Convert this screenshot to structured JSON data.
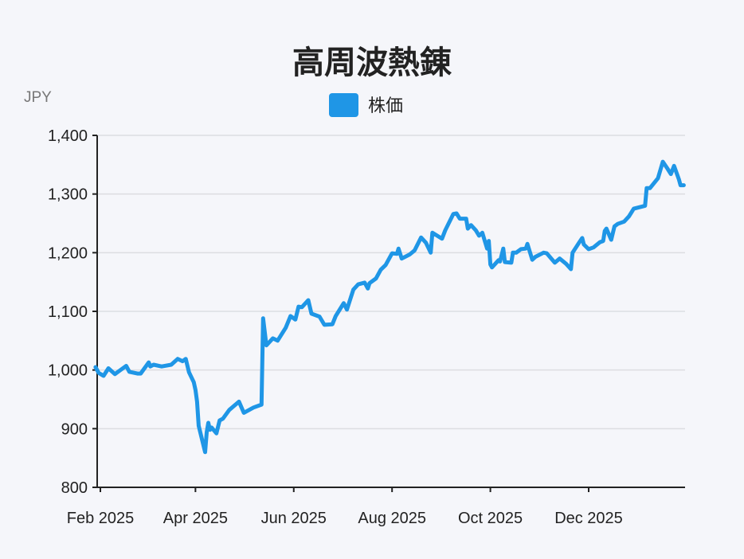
{
  "chart_data": {
    "type": "line",
    "title": "高周波熱錬",
    "ylabel": "JPY",
    "xlabel": "",
    "ylim": [
      800,
      1400
    ],
    "yticks": [
      800,
      900,
      1000,
      1100,
      1200,
      1300,
      1400
    ],
    "ytick_labels": [
      "800",
      "900",
      "1,000",
      "1,100",
      "1,200",
      "1,300",
      "1,400"
    ],
    "xticks": [
      "2025-02-01",
      "2025-04-01",
      "2025-06-01",
      "2025-08-01",
      "2025-10-01",
      "2025-12-01"
    ],
    "xtick_labels": [
      "Feb 2025",
      "Apr 2025",
      "Jun 2025",
      "Aug 2025",
      "Oct 2025",
      "Dec 2025"
    ],
    "grid": true,
    "legend": {
      "position": "top",
      "entries": [
        "株価"
      ]
    },
    "colors": {
      "line": "#1f96e6",
      "grid": "#dcdde1",
      "background": "#f5f6fa"
    },
    "series": [
      {
        "name": "株価",
        "x": [
          "2025-01-29",
          "2025-01-31",
          "2025-02-03",
          "2025-02-06",
          "2025-02-10",
          "2025-02-13",
          "2025-02-17",
          "2025-02-19",
          "2025-02-24",
          "2025-02-26",
          "2025-03-03",
          "2025-03-04",
          "2025-03-06",
          "2025-03-11",
          "2025-03-17",
          "2025-03-21",
          "2025-03-24",
          "2025-03-26",
          "2025-03-28",
          "2025-03-31",
          "2025-04-01",
          "2025-04-02",
          "2025-04-03",
          "2025-04-07",
          "2025-04-08",
          "2025-04-09",
          "2025-04-10",
          "2025-04-11",
          "2025-04-14",
          "2025-04-16",
          "2025-04-18",
          "2025-04-22",
          "2025-04-28",
          "2025-05-01",
          "2025-05-07",
          "2025-05-12",
          "2025-05-13",
          "2025-05-15",
          "2025-05-19",
          "2025-05-22",
          "2025-05-27",
          "2025-05-30",
          "2025-06-02",
          "2025-06-04",
          "2025-06-06",
          "2025-06-10",
          "2025-06-12",
          "2025-06-17",
          "2025-06-20",
          "2025-06-25",
          "2025-06-27",
          "2025-07-02",
          "2025-07-04",
          "2025-07-08",
          "2025-07-11",
          "2025-07-15",
          "2025-07-17",
          "2025-07-18",
          "2025-07-22",
          "2025-07-25",
          "2025-07-28",
          "2025-08-01",
          "2025-08-04",
          "2025-08-05",
          "2025-08-07",
          "2025-08-12",
          "2025-08-15",
          "2025-08-19",
          "2025-08-22",
          "2025-08-25",
          "2025-08-26",
          "2025-09-01",
          "2025-09-03",
          "2025-09-08",
          "2025-09-10",
          "2025-09-12",
          "2025-09-16",
          "2025-09-17",
          "2025-09-19",
          "2025-09-22",
          "2025-09-24",
          "2025-09-26",
          "2025-09-29",
          "2025-09-30",
          "2025-10-01",
          "2025-10-02",
          "2025-10-06",
          "2025-10-07",
          "2025-10-09",
          "2025-10-10",
          "2025-10-14",
          "2025-10-15",
          "2025-10-17",
          "2025-10-20",
          "2025-10-23",
          "2025-10-24",
          "2025-10-27",
          "2025-10-29",
          "2025-11-03",
          "2025-11-05",
          "2025-11-10",
          "2025-11-13",
          "2025-11-17",
          "2025-11-20",
          "2025-11-21",
          "2025-11-25",
          "2025-11-27",
          "2025-11-28",
          "2025-12-01",
          "2025-12-04",
          "2025-12-08",
          "2025-12-10",
          "2025-12-11",
          "2025-12-12",
          "2025-12-15",
          "2025-12-17",
          "2025-12-19",
          "2025-12-23",
          "2025-12-26",
          "2025-12-29",
          "2026-01-05",
          "2026-01-06",
          "2026-01-08",
          "2026-01-13",
          "2026-01-16",
          "2026-01-19",
          "2026-01-21",
          "2026-01-23",
          "2026-01-26",
          "2026-01-27",
          "2026-01-29"
        ],
        "y": [
          1005,
          995,
          990,
          1003,
          993,
          999,
          1007,
          997,
          994,
          994,
          1013,
          1006,
          1009,
          1006,
          1009,
          1019,
          1015,
          1019,
          996,
          979,
          966,
          946,
          905,
          860,
          894,
          910,
          898,
          902,
          892,
          914,
          917,
          932,
          946,
          927,
          936,
          941,
          1088,
          1042,
          1054,
          1050,
          1072,
          1092,
          1086,
          1108,
          1107,
          1119,
          1096,
          1091,
          1077,
          1078,
          1092,
          1114,
          1103,
          1137,
          1146,
          1149,
          1139,
          1148,
          1156,
          1171,
          1179,
          1199,
          1198,
          1207,
          1190,
          1197,
          1204,
          1226,
          1217,
          1200,
          1234,
          1224,
          1238,
          1266,
          1267,
          1258,
          1258,
          1241,
          1247,
          1238,
          1229,
          1234,
          1207,
          1220,
          1180,
          1175,
          1187,
          1185,
          1207,
          1184,
          1183,
          1200,
          1200,
          1206,
          1207,
          1215,
          1188,
          1193,
          1200,
          1199,
          1183,
          1190,
          1181,
          1172,
          1200,
          1217,
          1225,
          1214,
          1206,
          1209,
          1218,
          1220,
          1237,
          1241,
          1222,
          1245,
          1249,
          1253,
          1262,
          1275,
          1280,
          1310,
          1310,
          1327,
          1355,
          1343,
          1334,
          1348,
          1325,
          1315,
          1315
        ]
      }
    ]
  }
}
